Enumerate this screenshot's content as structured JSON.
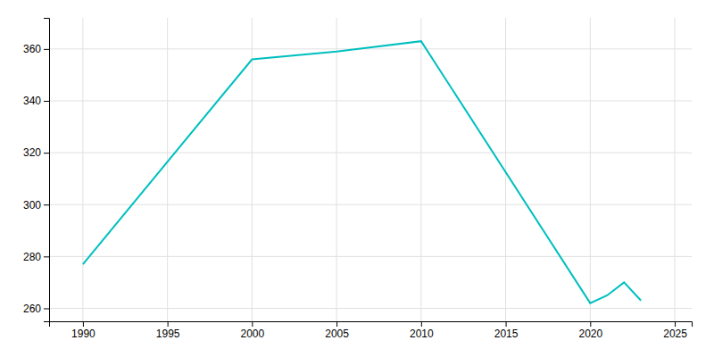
{
  "chart_data": {
    "type": "line",
    "x": [
      1990,
      2000,
      2005,
      2010,
      2020,
      2021,
      2022,
      2023
    ],
    "values": [
      277,
      356,
      359,
      363,
      262,
      265,
      270,
      263
    ],
    "color": "#00BFBF",
    "xlim": [
      1988,
      2026
    ],
    "ylim": [
      255,
      372
    ],
    "xticks": [
      1990,
      1995,
      2000,
      2005,
      2010,
      2015,
      2020,
      2025
    ],
    "yticks": [
      260,
      280,
      300,
      320,
      340,
      360
    ],
    "grid": true
  }
}
